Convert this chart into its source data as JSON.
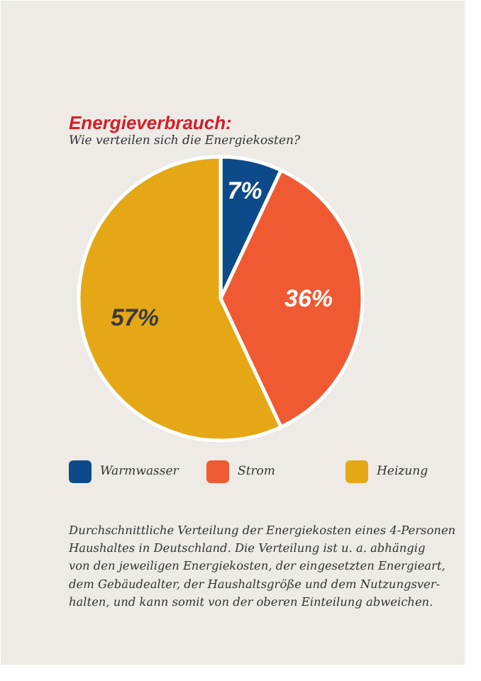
{
  "chart_data": {
    "type": "pie",
    "title": "Energieverbrauch:",
    "subtitle": "Wie verteilen sich die Energiekosten?",
    "categories": [
      "Warmwasser",
      "Strom",
      "Heizung"
    ],
    "values": [
      7,
      36,
      57
    ],
    "colors": [
      "#0d4a8a",
      "#f05a32",
      "#e5a716"
    ],
    "value_labels": [
      "7%",
      "36%",
      "57%"
    ],
    "legend": "bottom",
    "annotations": [
      "Durchschnittliche Verteilung der Energiekosten eines 4-Personen\nHaushaltes in Deutschland. Die Verteilung ist u. a. abhängig\nvon den jeweiligen Energiekosten, der eingesetzten Energieart,\ndem Gebäudealter, der Haushaltsgröße und dem Nutzungsver-\nhalten, und kann somit von der oberen Einteilung abweichen."
    ]
  }
}
